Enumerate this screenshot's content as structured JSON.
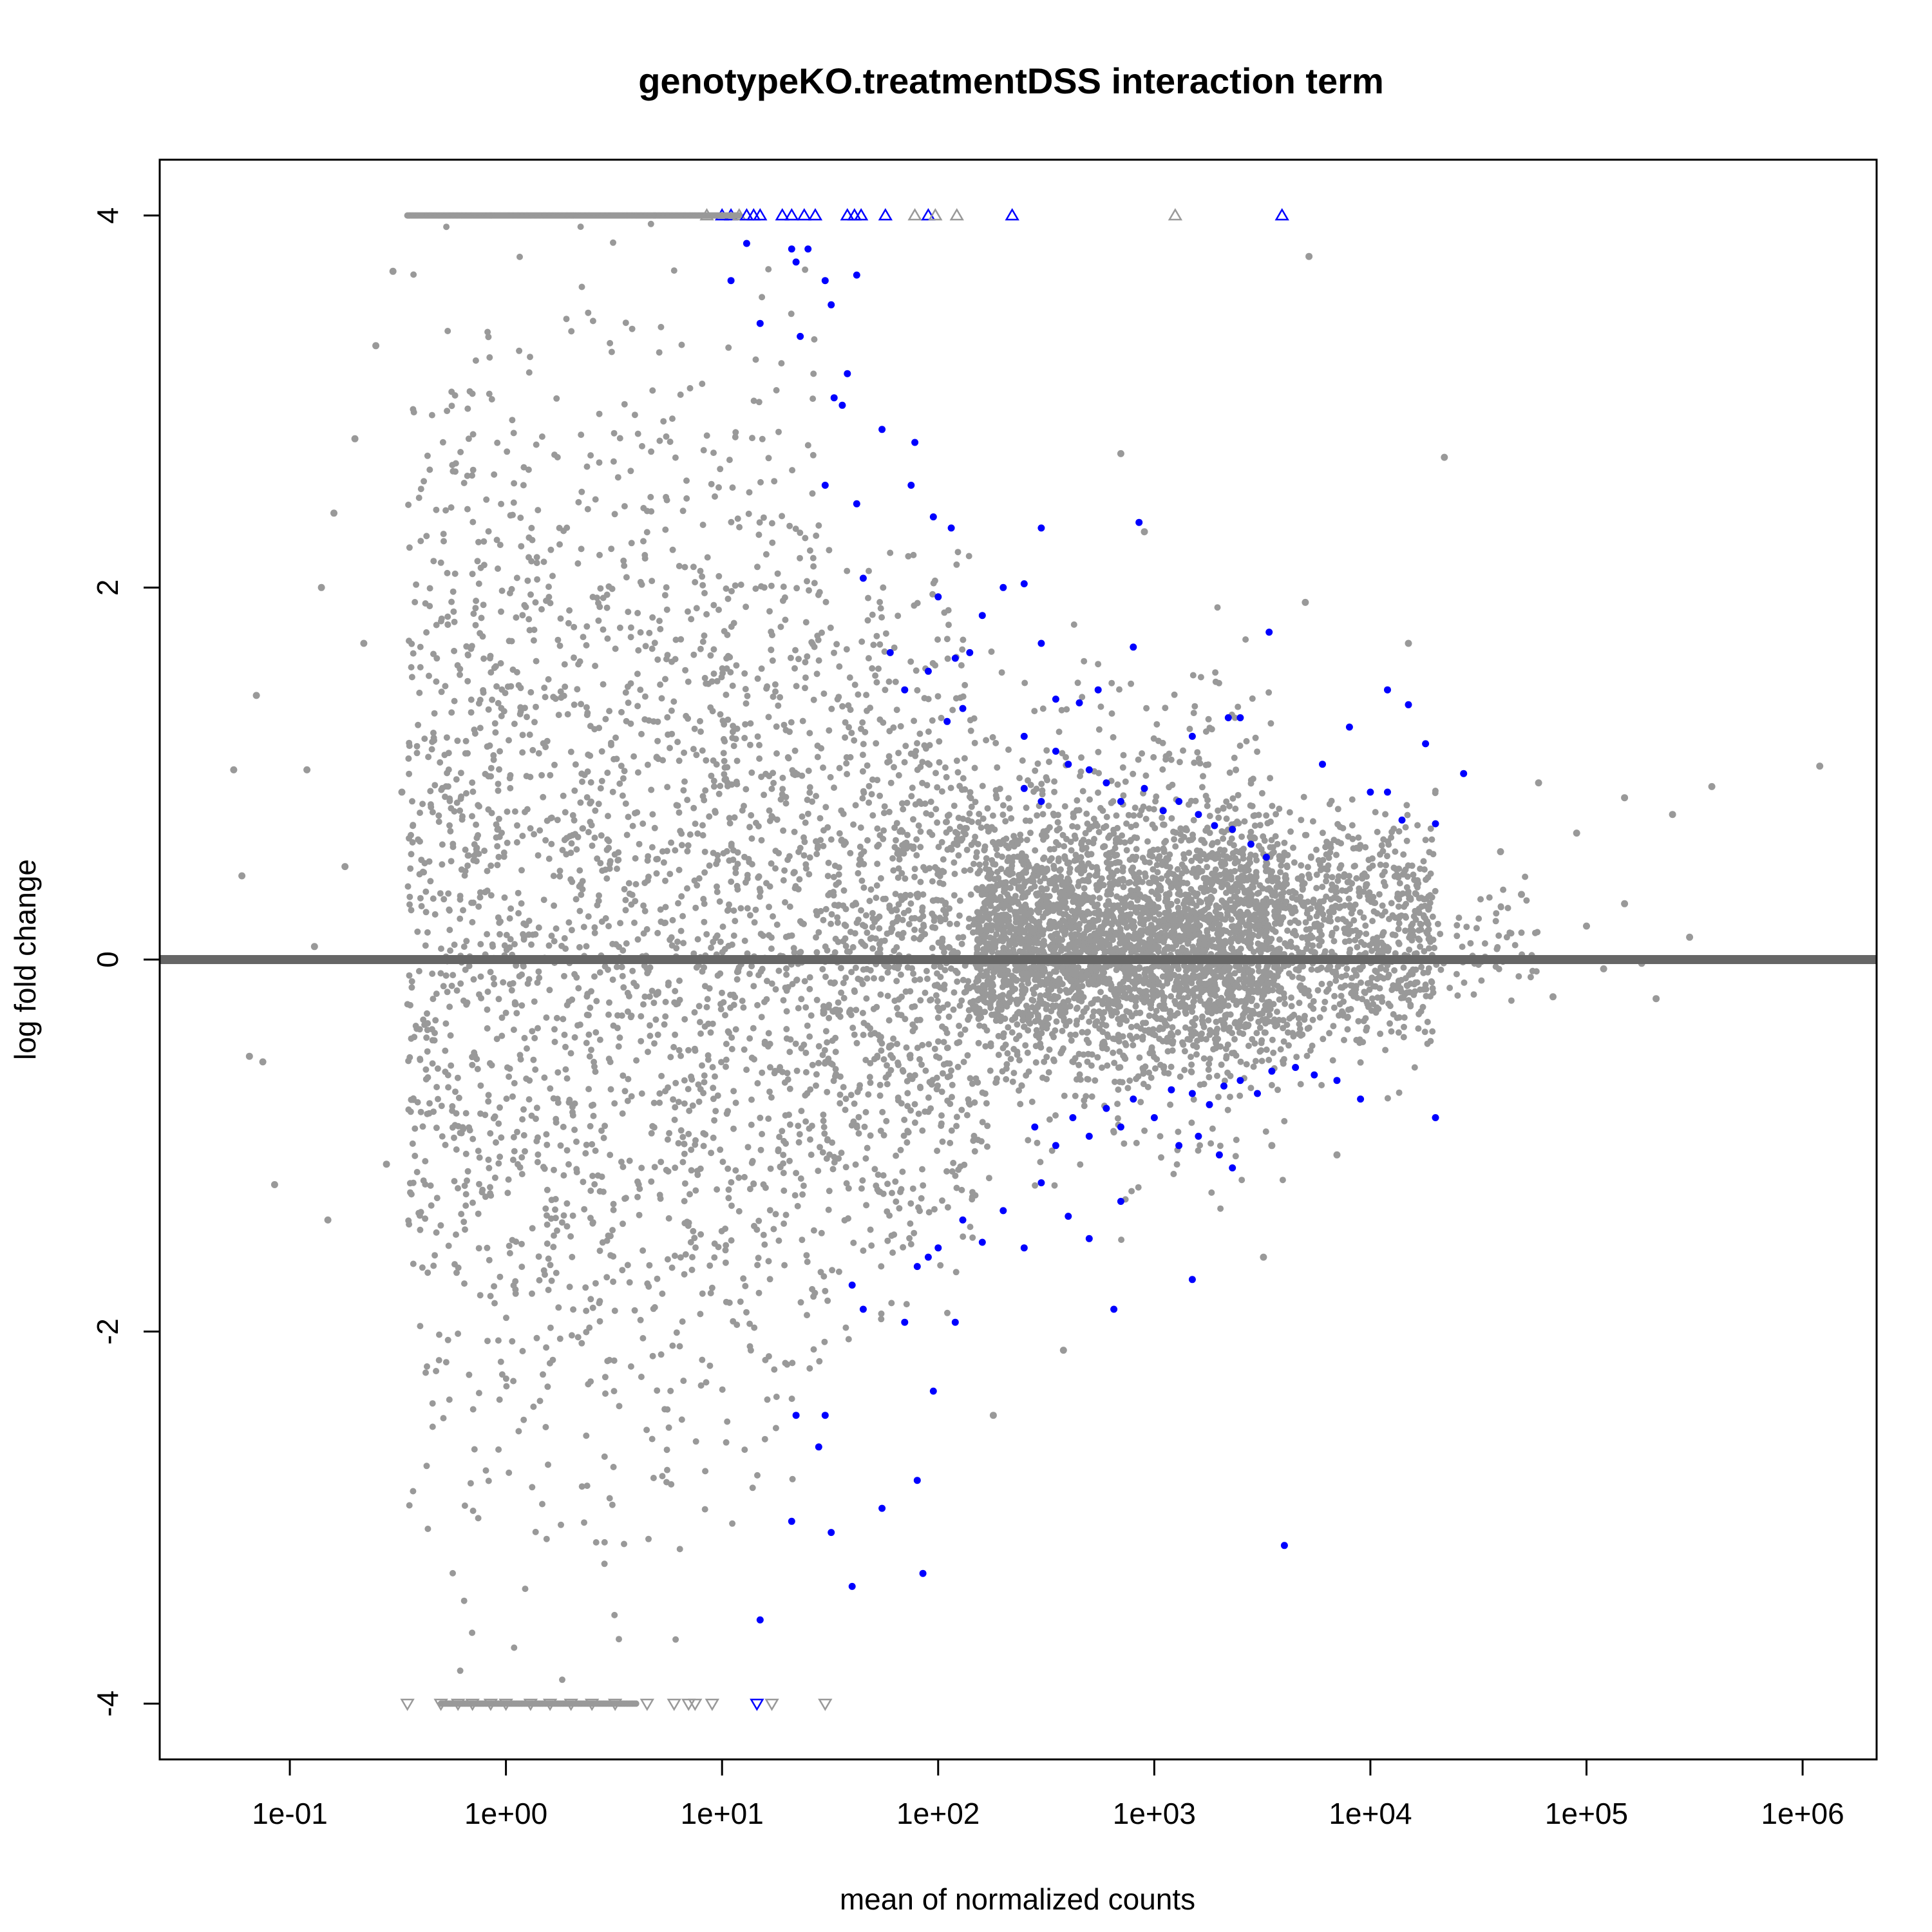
{
  "chart_data": {
    "type": "scatter",
    "title": "genotypeKO.treatmentDSS interaction term",
    "xlabel": "mean of normalized counts",
    "ylabel": "log fold change",
    "x_scale": "log10",
    "xlim": [
      0.025,
      2200000
    ],
    "ylim": [
      -4.3,
      4.3
    ],
    "x_ticks": [
      {
        "value": 0.1,
        "label": "1e-01"
      },
      {
        "value": 1,
        "label": "1e+00"
      },
      {
        "value": 10,
        "label": "1e+01"
      },
      {
        "value": 100,
        "label": "1e+02"
      },
      {
        "value": 1000,
        "label": "1e+03"
      },
      {
        "value": 10000,
        "label": "1e+04"
      },
      {
        "value": 100000,
        "label": "1e+05"
      },
      {
        "value": 1000000,
        "label": "1e+06"
      }
    ],
    "y_ticks": [
      {
        "value": 4,
        "label": "4"
      },
      {
        "value": 2,
        "label": "2"
      },
      {
        "value": 0,
        "label": "0"
      },
      {
        "value": -2,
        "label": "-2"
      },
      {
        "value": -4,
        "label": "-4"
      }
    ],
    "reference_line": {
      "y": 0,
      "color": "#666666"
    },
    "legend": "none",
    "grid": false,
    "series": [
      {
        "color": "#999999",
        "marker": "point",
        "points": [
          [
            0.055,
            1.02
          ],
          [
            0.06,
            0.45
          ],
          [
            0.065,
            -0.52
          ],
          [
            0.07,
            1.42
          ],
          [
            0.075,
            -0.55
          ],
          [
            0.085,
            -1.21
          ],
          [
            0.12,
            1.02
          ],
          [
            0.13,
            0.07
          ],
          [
            0.14,
            2.0
          ],
          [
            0.15,
            -1.4
          ],
          [
            0.16,
            2.4
          ],
          [
            0.18,
            0.5
          ],
          [
            0.2,
            2.8
          ],
          [
            0.22,
            1.7
          ],
          [
            0.25,
            3.3
          ],
          [
            0.28,
            -1.1
          ],
          [
            0.3,
            3.7
          ],
          [
            0.33,
            0.9
          ],
          [
            700,
            2.72
          ],
          [
            22000,
            2.7
          ],
          [
            5200,
            3.78
          ],
          [
            900,
            2.3
          ],
          [
            15000,
            1.7
          ],
          [
            5000,
            1.92
          ],
          [
            3500,
            -1.0
          ],
          [
            7000,
            -1.05
          ],
          [
            380,
            -2.1
          ],
          [
            180,
            -2.45
          ],
          [
            3200,
            -1.6
          ],
          [
            60000,
            0.95
          ],
          [
            90000,
            0.68
          ],
          [
            150000,
            0.87
          ],
          [
            250000,
            0.78
          ],
          [
            380000,
            0.93
          ],
          [
            1200000,
            1.04
          ],
          [
            70000,
            -0.2
          ],
          [
            100000,
            0.18
          ],
          [
            120000,
            -0.05
          ],
          [
            150000,
            0.3
          ],
          [
            180000,
            -0.02
          ],
          [
            210000,
            -0.21
          ],
          [
            300000,
            0.12
          ],
          [
            50000,
            0.35
          ],
          [
            40000,
            0.58
          ]
        ],
        "cloud_groups": [
          {
            "x_range": [
              0.35,
              8
            ],
            "y_range": [
              -3.6,
              3.95
            ],
            "n": 1600
          },
          {
            "x_range": [
              8,
              30
            ],
            "y_range": [
              -3.0,
              3.5
            ],
            "n": 700
          },
          {
            "x_range": [
              30,
              150
            ],
            "y_range": [
              -1.9,
              2.2
            ],
            "n": 900
          },
          {
            "x_range": [
              150,
              4000
            ],
            "y_range": [
              -0.65,
              0.85
            ],
            "n": 2600
          },
          {
            "x_range": [
              150,
              4000
            ],
            "y_range": [
              -1.3,
              1.7
            ],
            "n": 1000
          },
          {
            "x_range": [
              4000,
              20000
            ],
            "y_range": [
              -0.65,
              0.9
            ],
            "n": 700
          },
          {
            "x_range": [
              20000,
              60000
            ],
            "y_range": [
              -0.4,
              0.5
            ],
            "n": 60
          }
        ]
      },
      {
        "color": "#0000ff",
        "marker": "point",
        "points": [
          [
            11,
            3.65
          ],
          [
            13,
            3.85
          ],
          [
            15,
            3.42
          ],
          [
            21,
            3.82
          ],
          [
            22,
            3.75
          ],
          [
            23,
            3.35
          ],
          [
            25,
            3.82
          ],
          [
            30,
            3.65
          ],
          [
            32,
            3.52
          ],
          [
            38,
            3.15
          ],
          [
            33,
            3.02
          ],
          [
            36,
            2.98
          ],
          [
            42,
            3.68
          ],
          [
            55,
            2.85
          ],
          [
            78,
            2.78
          ],
          [
            75,
            2.55
          ],
          [
            95,
            2.38
          ],
          [
            115,
            2.32
          ],
          [
            300,
            2.32
          ],
          [
            850,
            2.35
          ],
          [
            200,
            2.0
          ],
          [
            250,
            2.02
          ],
          [
            42,
            2.45
          ],
          [
            45,
            2.05
          ],
          [
            30,
            2.55
          ],
          [
            100,
            1.95
          ],
          [
            120,
            1.62
          ],
          [
            140,
            1.65
          ],
          [
            160,
            1.85
          ],
          [
            90,
            1.55
          ],
          [
            60,
            1.65
          ],
          [
            70,
            1.45
          ],
          [
            130,
            1.35
          ],
          [
            110,
            1.28
          ],
          [
            300,
            1.7
          ],
          [
            800,
            1.68
          ],
          [
            3400,
            1.76
          ],
          [
            12000,
            1.45
          ],
          [
            15000,
            1.37
          ],
          [
            18000,
            1.16
          ],
          [
            27000,
            1.0
          ],
          [
            8000,
            1.25
          ],
          [
            6000,
            1.05
          ],
          [
            10000,
            0.9
          ],
          [
            12000,
            0.9
          ],
          [
            14000,
            0.75
          ],
          [
            20000,
            0.73
          ],
          [
            2200,
            1.3
          ],
          [
            2500,
            1.3
          ],
          [
            1500,
            1.2
          ],
          [
            250,
            1.2
          ],
          [
            350,
            1.12
          ],
          [
            400,
            1.05
          ],
          [
            500,
            1.02
          ],
          [
            600,
            0.95
          ],
          [
            700,
            0.85
          ],
          [
            900,
            0.92
          ],
          [
            1100,
            0.8
          ],
          [
            1300,
            0.85
          ],
          [
            1600,
            0.78
          ],
          [
            1900,
            0.72
          ],
          [
            2300,
            0.7
          ],
          [
            2800,
            0.62
          ],
          [
            3300,
            0.55
          ],
          [
            450,
            1.38
          ],
          [
            550,
            1.45
          ],
          [
            350,
            1.4
          ],
          [
            250,
            0.92
          ],
          [
            300,
            0.85
          ],
          [
            280,
            -0.9
          ],
          [
            350,
            -1.0
          ],
          [
            420,
            -0.85
          ],
          [
            500,
            -0.95
          ],
          [
            600,
            -0.8
          ],
          [
            700,
            -0.9
          ],
          [
            800,
            -0.75
          ],
          [
            1000,
            -0.85
          ],
          [
            1200,
            -0.7
          ],
          [
            1500,
            -0.72
          ],
          [
            1800,
            -0.78
          ],
          [
            2100,
            -0.68
          ],
          [
            2500,
            -0.65
          ],
          [
            3000,
            -0.72
          ],
          [
            3500,
            -0.6
          ],
          [
            4500,
            -0.58
          ],
          [
            5500,
            -0.62
          ],
          [
            7000,
            -0.65
          ],
          [
            9000,
            -0.75
          ],
          [
            1300,
            -1.0
          ],
          [
            1600,
            -0.95
          ],
          [
            2000,
            -1.05
          ],
          [
            2300,
            -1.12
          ],
          [
            700,
            -1.3
          ],
          [
            500,
            -1.5
          ],
          [
            400,
            -1.38
          ],
          [
            300,
            -1.2
          ],
          [
            250,
            -1.55
          ],
          [
            200,
            -1.35
          ],
          [
            160,
            -1.52
          ],
          [
            130,
            -1.4
          ],
          [
            100,
            -1.55
          ],
          [
            80,
            -1.65
          ],
          [
            90,
            -1.6
          ],
          [
            120,
            -1.95
          ],
          [
            70,
            -1.95
          ],
          [
            45,
            -1.88
          ],
          [
            40,
            -1.75
          ],
          [
            1500,
            -1.72
          ],
          [
            650,
            -1.88
          ],
          [
            20000,
            -0.85
          ],
          [
            95,
            -2.32
          ],
          [
            22,
            -2.45
          ],
          [
            30,
            -2.45
          ],
          [
            28,
            -2.62
          ],
          [
            80,
            -2.8
          ],
          [
            55,
            -2.95
          ],
          [
            21,
            -3.02
          ],
          [
            32,
            -3.08
          ],
          [
            85,
            -3.3
          ],
          [
            40,
            -3.37
          ],
          [
            15,
            -3.55
          ],
          [
            4000,
            -3.15
          ]
        ]
      }
    ],
    "clipped_markers": {
      "note": "points beyond the y-limits drawn as triangles at the plot edge",
      "top": [
        {
          "x": 8.5,
          "color": "#999999"
        },
        {
          "x": 10,
          "color": "#0000ff"
        },
        {
          "x": 11,
          "color": "#0000ff"
        },
        {
          "x": 12,
          "color": "#999999"
        },
        {
          "x": 13,
          "color": "#0000ff"
        },
        {
          "x": 14,
          "color": "#0000ff"
        },
        {
          "x": 15,
          "color": "#0000ff"
        },
        {
          "x": 19,
          "color": "#0000ff"
        },
        {
          "x": 21,
          "color": "#0000ff"
        },
        {
          "x": 24,
          "color": "#0000ff"
        },
        {
          "x": 27,
          "color": "#0000ff"
        },
        {
          "x": 38,
          "color": "#0000ff"
        },
        {
          "x": 41,
          "color": "#0000ff"
        },
        {
          "x": 44,
          "color": "#0000ff"
        },
        {
          "x": 57,
          "color": "#0000ff"
        },
        {
          "x": 78,
          "color": "#999999"
        },
        {
          "x": 90,
          "color": "#0000ff"
        },
        {
          "x": 97,
          "color": "#999999"
        },
        {
          "x": 122,
          "color": "#999999"
        },
        {
          "x": 220,
          "color": "#0000ff"
        },
        {
          "x": 1250,
          "color": "#999999"
        },
        {
          "x": 3900,
          "color": "#0000ff"
        }
      ],
      "bottom": [
        {
          "x": 0.35,
          "color": "#999999"
        },
        {
          "x": 0.5,
          "color": "#999999"
        },
        {
          "x": 0.6,
          "color": "#999999"
        },
        {
          "x": 0.7,
          "color": "#999999"
        },
        {
          "x": 0.85,
          "color": "#999999"
        },
        {
          "x": 1.0,
          "color": "#999999"
        },
        {
          "x": 1.3,
          "color": "#999999"
        },
        {
          "x": 1.6,
          "color": "#999999"
        },
        {
          "x": 2.0,
          "color": "#999999"
        },
        {
          "x": 2.5,
          "color": "#999999"
        },
        {
          "x": 3.2,
          "color": "#999999"
        },
        {
          "x": 4.5,
          "color": "#999999"
        },
        {
          "x": 6.0,
          "color": "#999999"
        },
        {
          "x": 7.0,
          "color": "#999999"
        },
        {
          "x": 7.5,
          "color": "#999999"
        },
        {
          "x": 9.0,
          "color": "#999999"
        },
        {
          "x": 14.5,
          "color": "#0000ff"
        },
        {
          "x": 17,
          "color": "#999999"
        },
        {
          "x": 30,
          "color": "#999999"
        }
      ]
    }
  }
}
